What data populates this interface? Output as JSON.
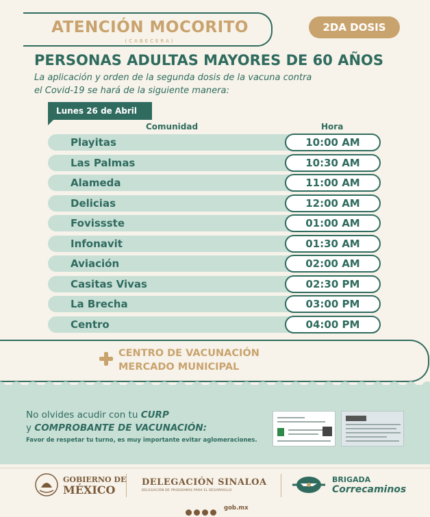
{
  "header": {
    "title": "ATENCIÓN MOCORITO",
    "subtitle": "(CABECERA)",
    "badge": "2DA DOSIS"
  },
  "heading": "PERSONAS ADULTAS MAYORES DE 60 AÑOS",
  "subheading_line1": "La aplicación y orden de la segunda dosis de la vacuna contra",
  "subheading_line2": "el Covid-19 se hará de la siguiente manera:",
  "date_label": "Lunes 26 de Abril",
  "table": {
    "col_community": "Comunidad",
    "col_time": "Hora",
    "rows": [
      {
        "name": "Playitas",
        "time": "10:00 AM"
      },
      {
        "name": "Las Palmas",
        "time": "10:30 AM"
      },
      {
        "name": "Alameda",
        "time": "11:00 AM"
      },
      {
        "name": "Delicias",
        "time": "12:00 AM"
      },
      {
        "name": "Fovissste",
        "time": "01:00 AM"
      },
      {
        "name": "Infonavit",
        "time": "01:30 AM"
      },
      {
        "name": "Aviación",
        "time": "02:00 AM"
      },
      {
        "name": "Casitas Vivas",
        "time": "02:30 PM"
      },
      {
        "name": "La Brecha",
        "time": "03:00 PM"
      },
      {
        "name": "Centro",
        "time": "04:00 PM"
      }
    ]
  },
  "venue": {
    "line1": "CENTRO DE VACUNACIÓN",
    "line2": "MERCADO MUNICIPAL"
  },
  "reminder": {
    "line1_prefix": "No olvides acudir con tu ",
    "line1_em": "CURP",
    "line2_prefix": "y ",
    "line2_em": "COMPROBANTE DE VACUNACIÓN:",
    "note": "Favor de respetar tu turno, es muy importante evitar aglomeraciones."
  },
  "footer": {
    "gov_line1": "GOBIERNO DE",
    "gov_line2": "MÉXICO",
    "deleg_line1": "DELEGACIÓN SINALOA",
    "deleg_line2": "DELEGACIÓN DE PROGRAMAS PARA EL DESARROLLO",
    "brigada_line1": "BRIGADA",
    "brigada_line2": "Correcaminos",
    "website": "gob.mx"
  },
  "colors": {
    "primary": "#2f6b5e",
    "accent": "#c9a36e",
    "light_green": "#c8dfd6",
    "background": "#f7f3ea",
    "footer_brown": "#7b5a3a"
  }
}
